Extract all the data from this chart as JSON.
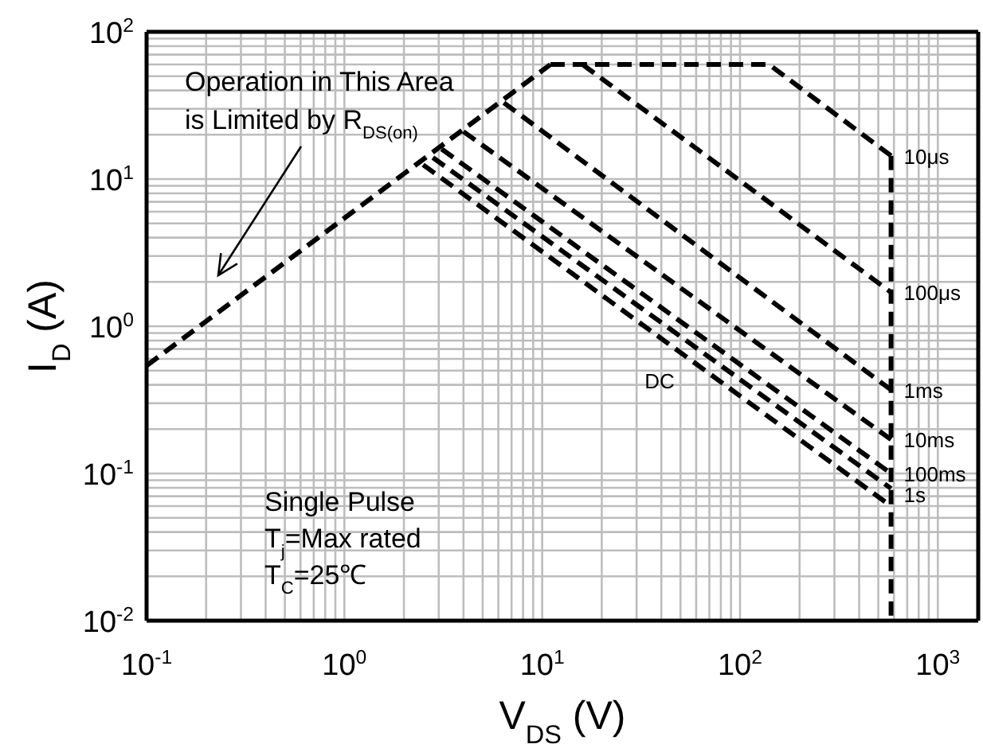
{
  "chart_data": {
    "type": "line",
    "xlabel": "V$_{DS}$ (V)",
    "ylabel": "I$_{D}$ (A)",
    "log": "xy",
    "grid": true,
    "marker": "none",
    "line_style": "dashed",
    "xlim": [
      0.1,
      1600
    ],
    "ylim": [
      0.01,
      100
    ],
    "xticks": [
      {
        "value": 0.1,
        "label": "10$^{-1}$"
      },
      {
        "value": 0.2,
        "label": null
      },
      {
        "value": 0.3,
        "label": null
      },
      {
        "value": 0.4,
        "label": null
      },
      {
        "value": 0.5,
        "label": null
      },
      {
        "value": 0.6,
        "label": null
      },
      {
        "value": 0.7,
        "label": null
      },
      {
        "value": 0.8,
        "label": null
      },
      {
        "value": 0.9,
        "label": null
      },
      {
        "value": 1,
        "label": "10$^{0}$"
      },
      {
        "value": 2,
        "label": null
      },
      {
        "value": 3,
        "label": null
      },
      {
        "value": 4,
        "label": null
      },
      {
        "value": 5,
        "label": null
      },
      {
        "value": 6,
        "label": null
      },
      {
        "value": 7,
        "label": null
      },
      {
        "value": 8,
        "label": null
      },
      {
        "value": 9,
        "label": null
      },
      {
        "value": 10,
        "label": "10$^{1}$"
      },
      {
        "value": 20,
        "label": null
      },
      {
        "value": 30,
        "label": null
      },
      {
        "value": 40,
        "label": null
      },
      {
        "value": 50,
        "label": null
      },
      {
        "value": 60,
        "label": null
      },
      {
        "value": 70,
        "label": null
      },
      {
        "value": 80,
        "label": null
      },
      {
        "value": 90,
        "label": null
      },
      {
        "value": 100,
        "label": "10$^{2}$"
      },
      {
        "value": 200,
        "label": null
      },
      {
        "value": 300,
        "label": null
      },
      {
        "value": 400,
        "label": null
      },
      {
        "value": 500,
        "label": null
      },
      {
        "value": 600,
        "label": null
      },
      {
        "value": 700,
        "label": null
      },
      {
        "value": 800,
        "label": null
      },
      {
        "value": 900,
        "label": null
      },
      {
        "value": 1000,
        "label": "10$^{3}$"
      }
    ],
    "yticks": [
      {
        "value": 0.01,
        "label": "10$^{-2}$"
      },
      {
        "value": 0.02,
        "label": null
      },
      {
        "value": 0.03,
        "label": null
      },
      {
        "value": 0.04,
        "label": null
      },
      {
        "value": 0.05,
        "label": null
      },
      {
        "value": 0.06,
        "label": null
      },
      {
        "value": 0.07,
        "label": null
      },
      {
        "value": 0.08,
        "label": null
      },
      {
        "value": 0.09,
        "label": null
      },
      {
        "value": 0.1,
        "label": "10$^{-1}$"
      },
      {
        "value": 0.2,
        "label": null
      },
      {
        "value": 0.3,
        "label": null
      },
      {
        "value": 0.4,
        "label": null
      },
      {
        "value": 0.5,
        "label": null
      },
      {
        "value": 0.6,
        "label": null
      },
      {
        "value": 0.7,
        "label": null
      },
      {
        "value": 0.8,
        "label": null
      },
      {
        "value": 0.9,
        "label": null
      },
      {
        "value": 1,
        "label": "10$^{0}$"
      },
      {
        "value": 2,
        "label": null
      },
      {
        "value": 3,
        "label": null
      },
      {
        "value": 4,
        "label": null
      },
      {
        "value": 5,
        "label": null
      },
      {
        "value": 6,
        "label": null
      },
      {
        "value": 7,
        "label": null
      },
      {
        "value": 8,
        "label": null
      },
      {
        "value": 9,
        "label": null
      },
      {
        "value": 10,
        "label": "10$^{1}$"
      },
      {
        "value": 20,
        "label": null
      },
      {
        "value": 30,
        "label": null
      },
      {
        "value": 40,
        "label": null
      },
      {
        "value": 50,
        "label": null
      },
      {
        "value": 60,
        "label": null
      },
      {
        "value": 70,
        "label": null
      },
      {
        "value": 80,
        "label": null
      },
      {
        "value": 90,
        "label": null
      },
      {
        "value": 100,
        "label": "10$^{2}$"
      }
    ],
    "series": [
      {
        "color": "#000000",
        "x": [
          0.1,
          11
        ],
        "values": [
          0.54,
          60
        ]
      },
      {
        "name": "10μs",
        "color": "#000000",
        "x": [
          11,
          140,
          580
        ],
        "values": [
          60,
          60,
          14.4
        ]
      },
      {
        "color": "#000000",
        "x": [
          580,
          580
        ],
        "values": [
          14.4,
          0.01
        ]
      },
      {
        "name": "100μs",
        "color": "#000000",
        "x": [
          16,
          580
        ],
        "values": [
          60,
          1.7
        ]
      },
      {
        "name": "1ms",
        "color": "#000000",
        "x": [
          6.4,
          580
        ],
        "values": [
          33,
          0.37
        ]
      },
      {
        "name": "10ms",
        "color": "#000000",
        "x": [
          4,
          580
        ],
        "values": [
          21,
          0.17
        ]
      },
      {
        "name": "100ms",
        "color": "#000000",
        "x": [
          3.1,
          580
        ],
        "values": [
          16,
          0.1
        ]
      },
      {
        "name": "1s",
        "color": "#000000",
        "x": [
          2.8,
          580
        ],
        "values": [
          14,
          0.079
        ]
      },
      {
        "color": "#000000",
        "x": [
          2.5,
          580
        ],
        "values": [
          12.5,
          0.06
        ]
      }
    ],
    "annotations": [
      "Operation in This Area\nis Limited by R$_{DS(on)}$",
      "DC",
      "Single Pulse",
      "T$_{j}$=Max rated",
      "T$_{C}$=25℃"
    ]
  }
}
